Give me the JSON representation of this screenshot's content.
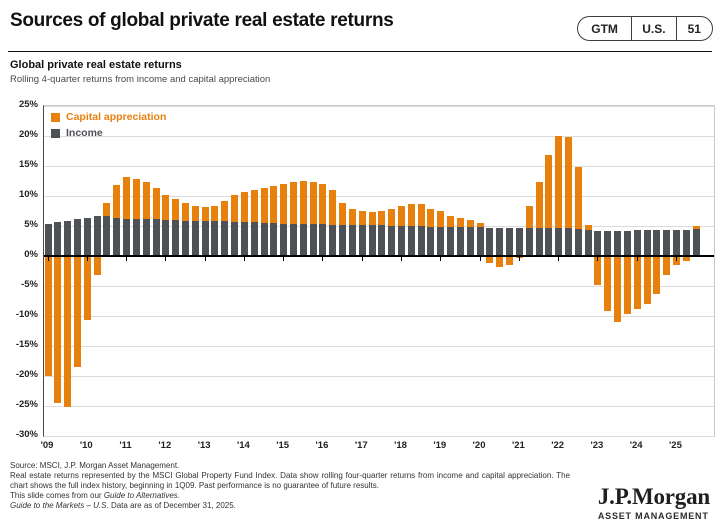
{
  "header": {
    "title": "Sources of global private real estate returns",
    "pill": [
      "GTM",
      "U.S.",
      "51"
    ]
  },
  "chart": {
    "heading": "Global private real estate returns",
    "subtitle": "Rolling 4-quarter returns from income and capital appreciation"
  },
  "chart_data": {
    "type": "bar",
    "stacked": true,
    "grid": true,
    "legend_position": "top-left",
    "ylim": [
      -30,
      25
    ],
    "y_ticks": [
      25,
      20,
      15,
      10,
      5,
      0,
      -5,
      -10,
      -15,
      -20,
      -25,
      -30
    ],
    "y_unit": "%",
    "x_tick_labels": [
      "'09",
      "'10",
      "'11",
      "'12",
      "'13",
      "'14",
      "'15",
      "'16",
      "'17",
      "'18",
      "'19",
      "'20",
      "'21",
      "'22",
      "'23",
      "'24",
      "'25"
    ],
    "quarters": [
      "1Q09",
      "2Q09",
      "3Q09",
      "4Q09",
      "1Q10",
      "2Q10",
      "3Q10",
      "4Q10",
      "1Q11",
      "2Q11",
      "3Q11",
      "4Q11",
      "1Q12",
      "2Q12",
      "3Q12",
      "4Q12",
      "1Q13",
      "2Q13",
      "3Q13",
      "4Q13",
      "1Q14",
      "2Q14",
      "3Q14",
      "4Q14",
      "1Q15",
      "2Q15",
      "3Q15",
      "4Q15",
      "1Q16",
      "2Q16",
      "3Q16",
      "4Q16",
      "1Q17",
      "2Q17",
      "3Q17",
      "4Q17",
      "1Q18",
      "2Q18",
      "3Q18",
      "4Q18",
      "1Q19",
      "2Q19",
      "3Q19",
      "4Q19",
      "1Q20",
      "2Q20",
      "3Q20",
      "4Q20",
      "1Q21",
      "2Q21",
      "3Q21",
      "4Q21",
      "1Q22",
      "2Q22",
      "3Q22",
      "4Q22",
      "1Q23",
      "2Q23",
      "3Q23",
      "4Q23",
      "1Q24",
      "2Q24",
      "3Q24",
      "4Q24",
      "1Q25",
      "2Q25",
      "3Q25"
    ],
    "series": [
      {
        "name": "Income",
        "color": "#4E5156",
        "values": [
          5.3,
          5.6,
          5.9,
          6.1,
          6.4,
          6.6,
          6.6,
          6.3,
          6.2,
          6.2,
          6.1,
          6.1,
          6.0,
          6.0,
          5.9,
          5.9,
          5.9,
          5.8,
          5.8,
          5.7,
          5.6,
          5.6,
          5.5,
          5.5,
          5.4,
          5.4,
          5.4,
          5.4,
          5.3,
          5.2,
          5.2,
          5.2,
          5.1,
          5.1,
          5.1,
          5.0,
          5.0,
          5.0,
          5.0,
          4.9,
          4.9,
          4.9,
          4.8,
          4.8,
          4.8,
          4.7,
          4.7,
          4.7,
          4.7,
          4.7,
          4.7,
          4.6,
          4.6,
          4.6,
          4.5,
          4.3,
          4.2,
          4.2,
          4.2,
          4.2,
          4.3,
          4.3,
          4.3,
          4.4,
          4.4,
          4.4,
          4.5
        ]
      },
      {
        "name": "Capital appreciation",
        "color": "#E8800E",
        "values": [
          -20.0,
          -24.5,
          -25.1,
          -18.5,
          -10.7,
          -3.2,
          2.2,
          5.6,
          6.9,
          6.7,
          6.2,
          5.3,
          4.2,
          3.5,
          2.9,
          2.5,
          2.3,
          2.5,
          3.3,
          4.4,
          5.1,
          5.4,
          5.8,
          6.2,
          6.6,
          6.9,
          7.1,
          6.9,
          6.7,
          5.8,
          3.6,
          2.7,
          2.4,
          2.3,
          2.4,
          2.9,
          3.3,
          3.6,
          3.7,
          3.0,
          2.6,
          1.8,
          1.5,
          1.2,
          0.7,
          -1.2,
          -1.8,
          -1.5,
          -0.3,
          3.7,
          7.6,
          12.3,
          15.4,
          15.2,
          10.3,
          0.8,
          -4.9,
          -9.2,
          -11.0,
          -9.7,
          -8.8,
          -8.0,
          -6.3,
          -3.2,
          -1.5,
          -0.9,
          0.5
        ]
      }
    ]
  },
  "footer": {
    "source": "Source: MSCI, J.P. Morgan Asset Management.",
    "note": "Real estate returns represented by the MSCI Global Property Fund Index. Data show rolling four-quarter returns from income and capital appreciation. The chart shows the full index history, beginning in 1Q09. Past performance is no guarantee of future results.",
    "slide_note_prefix": "This slide comes from our ",
    "slide_note_italic": "Guide to Alternatives",
    "slide_note_suffix": ".",
    "gtm_italic": "Guide to the Markets – U.S.",
    "gtm_rest": " Data are as of December 31, 2025."
  },
  "logo": {
    "name": "J.P.Morgan",
    "sub": "ASSET MANAGEMENT"
  }
}
